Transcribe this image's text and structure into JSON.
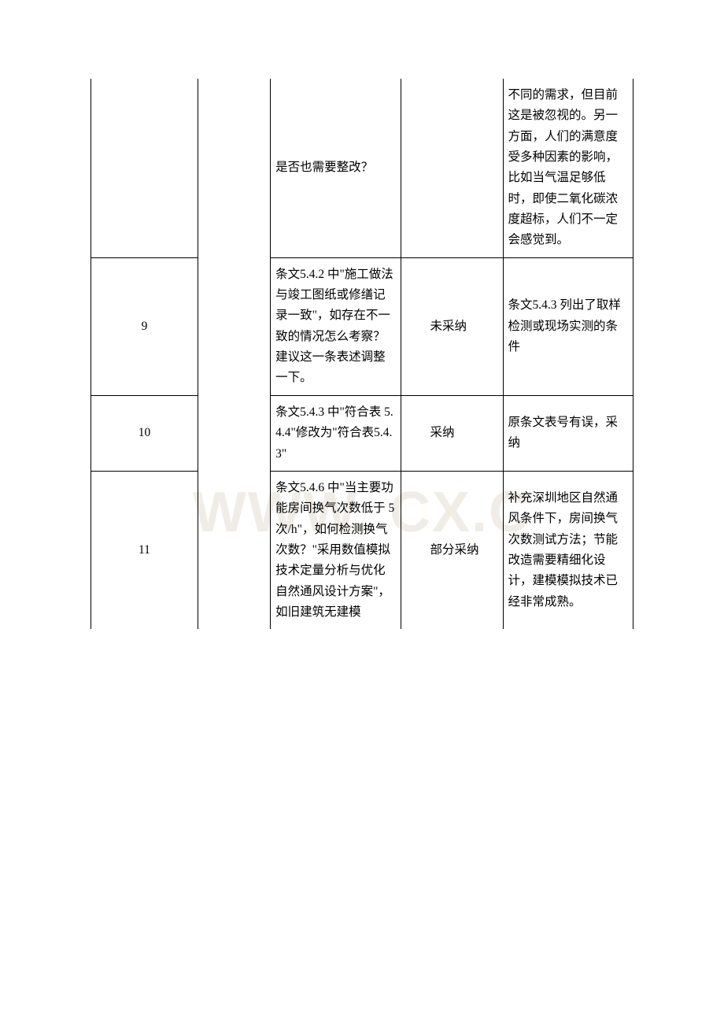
{
  "watermark": "WWW.    CX.C",
  "rows": [
    {
      "num": "",
      "col3": "是否也需要整改？",
      "col4": "",
      "col5": "不同的需求，但目前这是被忽视的。另一方面，人们的满意度受多种因素的影响，比如当气温足够低时，即使二氧化碳浓度超标，人们不一定会感觉到。"
    },
    {
      "num": "9",
      "col3_indent": "条文",
      "col3": "5.4.2 中\"施工做法与竣工图纸或修缮记录一致\"，如存在不一致的情况怎么考察？建议这一条表述调整一下。",
      "col4": "未采纳",
      "col5_indent": "条文",
      "col5": "5.4.3 列出了取样检测或现场实测的条件"
    },
    {
      "num": "10",
      "col3_indent": "条文",
      "col3": "5.4.3 中\"符合表 5.4.4\"修改为\"符合表5.4.3\"",
      "col4": "采纳",
      "col5_indent": "原条文",
      "col5": "表号有误，采纳"
    },
    {
      "num": "11",
      "col3_indent": "条文",
      "col3": "5.4.6 中\"当主要功能房间换气次数低于 5 次/h\"，如何检测换气次数？\"采用数值模拟技术定量分析与优化自然通风设计方案\"，如旧建筑无建模",
      "col4": "部分采纳",
      "col5_indent": "补充深",
      "col5": "圳地区自然通风条件下，房间换气次数测试方法；节能改造需要精细化设计，建模模拟技术已经非常成熟。"
    }
  ],
  "style": {
    "font_size": 15.5,
    "line_height": 1.7,
    "border_color": "#000000",
    "text_color": "#000000",
    "watermark_color": "#f0ece6",
    "background_color": "#ffffff"
  }
}
